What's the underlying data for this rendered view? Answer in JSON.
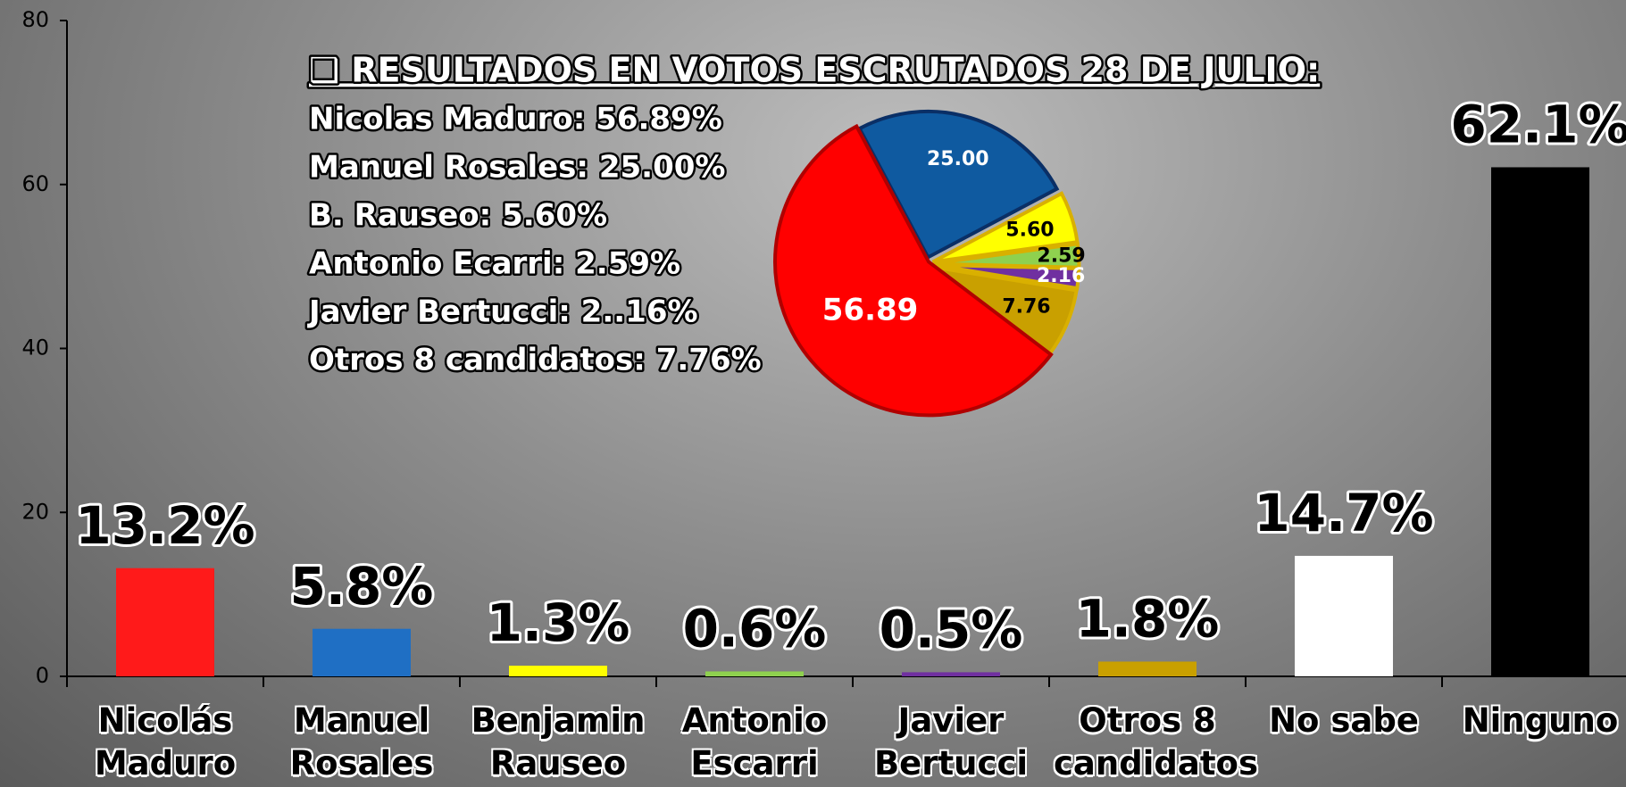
{
  "chart_data": [
    {
      "type": "bar",
      "categories": [
        "Nicolás Maduro",
        "Manuel Rosales",
        "Benjamin Rauseo",
        "Antonio Escarri",
        "Javier Bertucci",
        "Otros 8 candidatos",
        "No sabe",
        "Ninguno"
      ],
      "values": [
        13.2,
        5.8,
        1.3,
        0.6,
        0.5,
        1.8,
        14.7,
        62.1
      ],
      "value_labels": [
        "13.2%",
        "5.8%",
        "1.3%",
        "0.6%",
        "0.5%",
        "1.8%",
        "14.7%",
        "62.1%"
      ],
      "colors": [
        "#ff1a1a",
        "#1f6fc4",
        "#ffff00",
        "#8fd14f",
        "#7030a0",
        "#c9a000",
        "#ffffff",
        "#000000"
      ],
      "ylim": [
        0,
        80
      ],
      "yticks": [
        0,
        20,
        40,
        60,
        80
      ]
    },
    {
      "type": "pie",
      "title": "❑ RESULTADOS EN VOTOS ESCRUTADOS 28 DE JULIO:",
      "annotations": [
        "Nicolas Maduro: 56.89%",
        "Manuel Rosales: 25.00%",
        "B. Rauseo: 5.60%",
        "Antonio Ecarri: 2.59%",
        "Javier Bertucci: 2..16%",
        "Otros 8 candidatos: 7.76%"
      ],
      "values": [
        25.0,
        5.6,
        2.59,
        2.16,
        7.76,
        56.89
      ],
      "value_labels": [
        "25.00",
        "5.60",
        "2.59",
        "2.16",
        "7.76",
        "56.89"
      ],
      "colors": [
        "#0f5aa0",
        "#ffff00",
        "#8fd14f",
        "#7030a0",
        "#c9a000",
        "#ff0000"
      ]
    }
  ]
}
